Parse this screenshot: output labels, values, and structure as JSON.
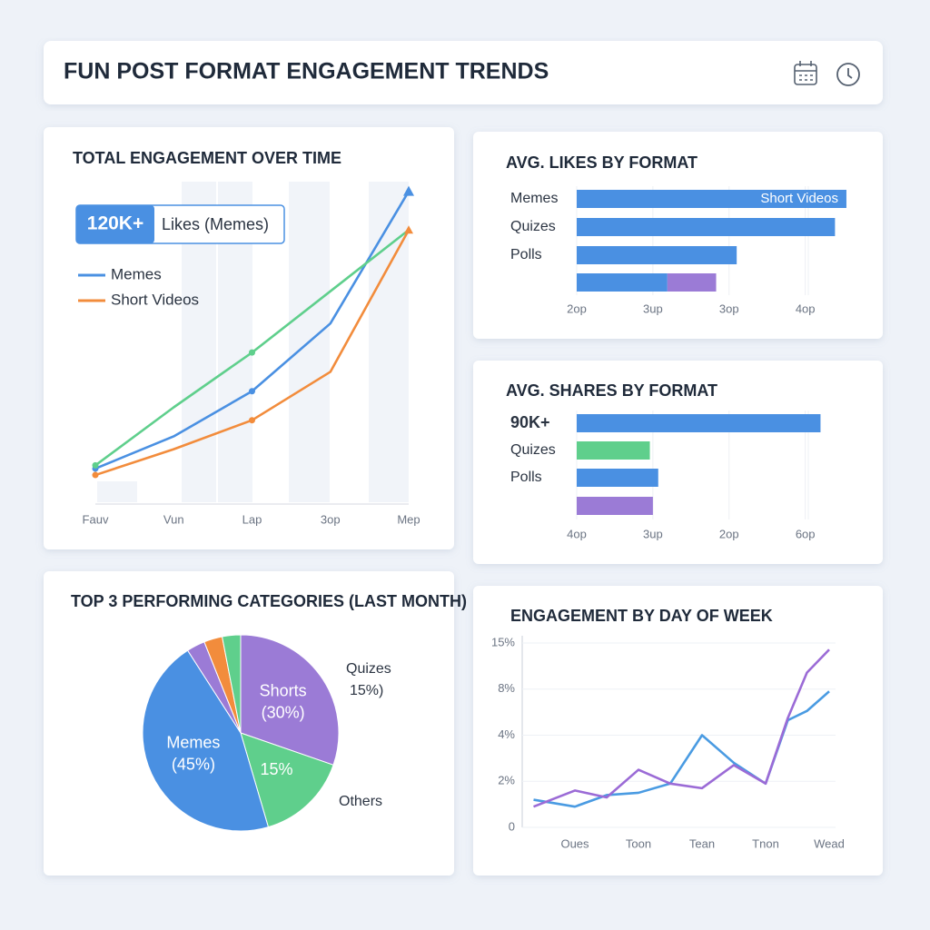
{
  "header": {
    "title": "FUN POST FORMAT ENGAGEMENT TRENDS"
  },
  "chart_data": [
    {
      "type": "line",
      "title": "TOTAL ENGAGEMENT OVER TIME",
      "categories": [
        "Fauv",
        "Vun",
        "Lap",
        "3op",
        "Mep"
      ],
      "series": [
        {
          "name": "Memes",
          "color": "#4a90e2",
          "values": [
            11,
            21,
            35,
            56,
            97
          ]
        },
        {
          "name": "Short Videos",
          "color": "#f28c3c",
          "values": [
            9,
            17,
            26,
            41,
            85
          ]
        },
        {
          "color": "#5fcf8c",
          "values": [
            12,
            30,
            47,
            66,
            85
          ]
        }
      ],
      "ylim": [
        0,
        100
      ],
      "badge": "120K+",
      "badge_label": "Likes (Memes)"
    },
    {
      "type": "hbar",
      "title": "AVG. LIKES BY FORMAT",
      "categories": [
        "Memes",
        "Quizes",
        "Polls",
        null
      ],
      "series": [
        {
          "color": "#4a90e2",
          "values": [
            3.54,
            3.39,
            2.1,
            1.19
          ]
        },
        {
          "color": "#9b7bd6",
          "values": [
            null,
            null,
            null,
            0.64
          ]
        }
      ],
      "xlim": [
        0,
        3.6
      ],
      "xticks": [
        {
          "value": 0,
          "label": "2op"
        },
        {
          "value": 1,
          "label": "3up"
        },
        {
          "value": 2,
          "label": "3op"
        },
        {
          "value": 3,
          "label": "4op"
        }
      ],
      "grid": true,
      "bar_annotation": "Short Videos"
    },
    {
      "type": "hbar",
      "title": "AVG. SHARES BY FORMAT",
      "categories": [
        "90K+",
        "Quizes",
        "Polls",
        null
      ],
      "values": [
        3.2,
        0.96,
        1.07,
        1.0
      ],
      "colors": [
        "#4a90e2",
        "#5fcf8c",
        "#4a90e2",
        "#9b7bd6"
      ],
      "xlim": [
        0,
        3.6
      ],
      "xticks": [
        {
          "value": 0,
          "label": "4op"
        },
        {
          "value": 1,
          "label": "3up"
        },
        {
          "value": 2,
          "label": "2op"
        },
        {
          "value": 3,
          "label": "6op"
        }
      ],
      "grid": true
    },
    {
      "type": "pie",
      "title": "TOP 3 PERFORMING CATEGORIES (LAST MONTH)",
      "categories": [
        "Shorts",
        null,
        "Memes",
        null,
        null,
        null
      ],
      "values": [
        30,
        15,
        45,
        3,
        3,
        3
      ],
      "value_labels": [
        "(30%)",
        "15%",
        "(45%)",
        null,
        null,
        null
      ],
      "colors": [
        "#9b7bd6",
        "#5fcf8c",
        "#4a90e2",
        "#9b7bd6",
        "#f28c3c",
        "#5fcf8c"
      ],
      "annotations": [
        "Quizes",
        "15%)",
        "Others"
      ]
    },
    {
      "type": "line",
      "title": "ENGAGEMENT BY DAY OF WEEK",
      "x": [
        0.35,
        1,
        1.5,
        2,
        2.5,
        3,
        3.5,
        4,
        4.35,
        4.65,
        5
      ],
      "xlim": [
        0.3,
        5.1
      ],
      "xticks": [
        {
          "value": 1,
          "label": "Oues"
        },
        {
          "value": 2,
          "label": "Toon"
        },
        {
          "value": 3,
          "label": "Tean"
        },
        {
          "value": 4,
          "label": "Tnon"
        },
        {
          "value": 5,
          "label": "Wead"
        }
      ],
      "series": [
        {
          "color": "#4a9be2",
          "values": [
            1.2,
            0.9,
            1.4,
            1.5,
            1.9,
            4.0,
            2.8,
            1.9,
            5.3,
            6.1,
            7.8
          ]
        },
        {
          "color": "#9b6bd6",
          "values": [
            0.9,
            1.6,
            1.3,
            2.5,
            1.9,
            1.7,
            2.7,
            1.9,
            5.5,
            10.5,
            14.0
          ]
        }
      ],
      "ylim": [
        0,
        15
      ],
      "yticks": [
        0,
        {
          "value": 2,
          "label": "2%"
        },
        {
          "value": 4,
          "label": "4%"
        },
        {
          "value": 8,
          "label": "8%"
        },
        {
          "value": 15,
          "label": "15%"
        }
      ]
    }
  ]
}
